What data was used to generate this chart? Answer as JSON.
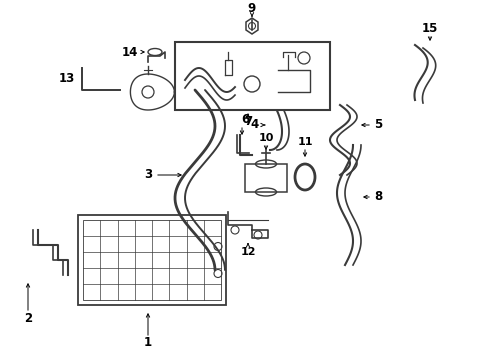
{
  "bg_color": "#ffffff",
  "line_color": "#3a3a3a",
  "text_color": "#000000",
  "figsize": [
    4.89,
    3.6
  ],
  "dpi": 100,
  "lw": 1.2
}
